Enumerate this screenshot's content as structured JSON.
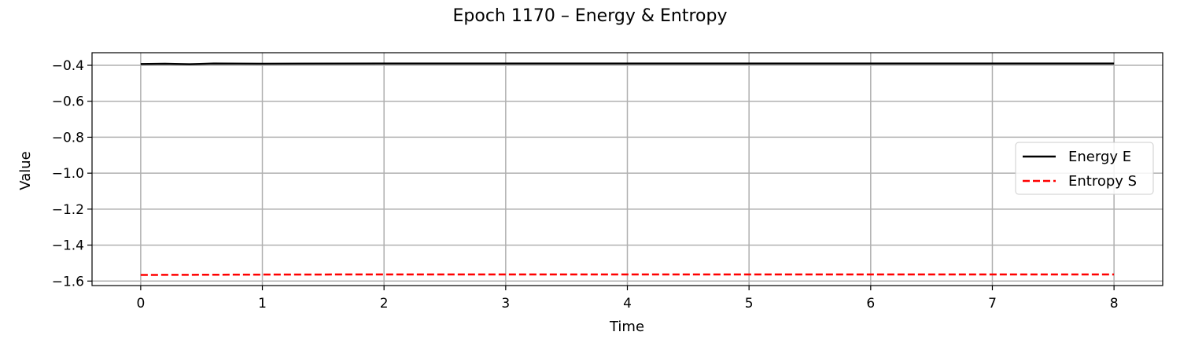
{
  "chart_data": {
    "type": "line",
    "title": "Epoch 1170 – Energy & Entropy",
    "xlabel": "Time",
    "ylabel": "Value",
    "xlim": [
      -0.4,
      8.4
    ],
    "ylim": [
      -1.625,
      -0.33
    ],
    "xticks": [
      0,
      1,
      2,
      3,
      4,
      5,
      6,
      7,
      8
    ],
    "xtick_labels": [
      "0",
      "1",
      "2",
      "3",
      "4",
      "5",
      "6",
      "7",
      "8"
    ],
    "yticks": [
      -0.4,
      -0.6,
      -0.8,
      -1.0,
      -1.2,
      -1.4,
      -1.6
    ],
    "ytick_labels": [
      "−0.4",
      "−0.6",
      "−0.8",
      "−1.0",
      "−1.2",
      "−1.4",
      "−1.6"
    ],
    "grid": true,
    "legend_position": "center-right",
    "series": [
      {
        "name": "Energy E",
        "color": "#000000",
        "style": "solid",
        "x": [
          0,
          0.2,
          0.4,
          0.6,
          1.0,
          2.0,
          3.0,
          4.0,
          5.0,
          6.0,
          7.0,
          8.0
        ],
        "y": [
          -0.393,
          -0.391,
          -0.394,
          -0.39,
          -0.391,
          -0.39,
          -0.39,
          -0.39,
          -0.39,
          -0.39,
          -0.39,
          -0.39
        ]
      },
      {
        "name": "Entropy S",
        "color": "#ff0000",
        "style": "dashed",
        "x": [
          0,
          0.5,
          1.0,
          2.0,
          3.0,
          4.0,
          5.0,
          6.0,
          7.0,
          8.0
        ],
        "y": [
          -1.566,
          -1.565,
          -1.564,
          -1.563,
          -1.563,
          -1.563,
          -1.563,
          -1.563,
          -1.563,
          -1.563
        ]
      }
    ]
  }
}
